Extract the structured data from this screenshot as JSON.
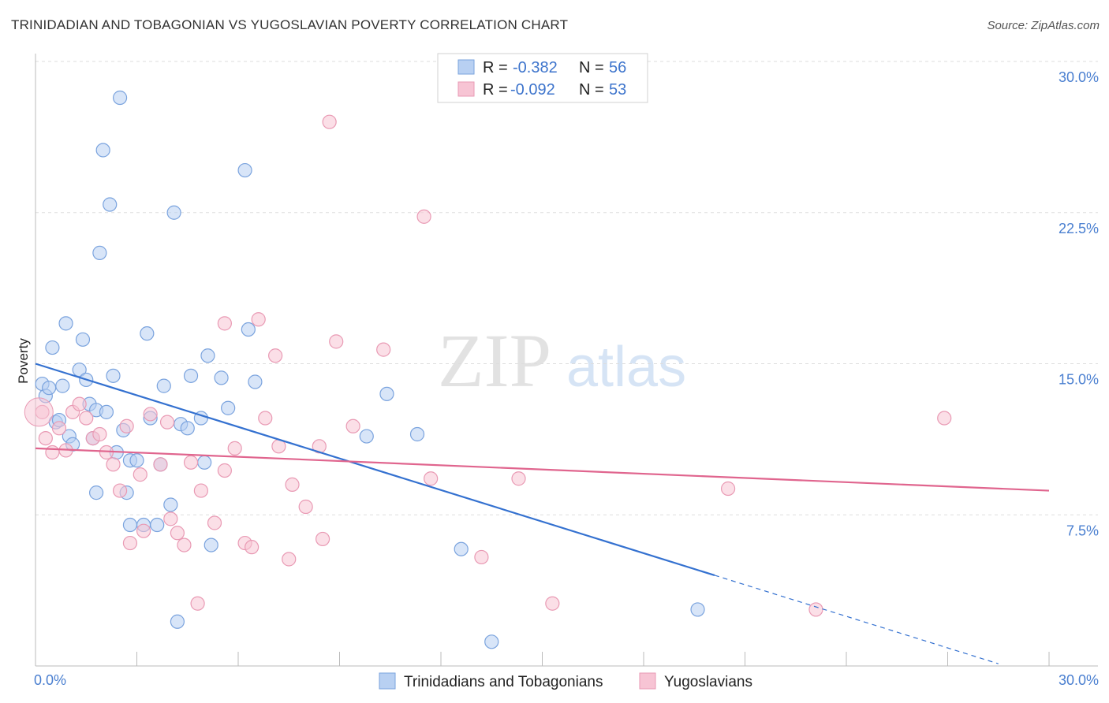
{
  "title": "TRINIDADIAN AND TOBAGONIAN VS YUGOSLAVIAN POVERTY CORRELATION CHART",
  "source": "Source: ZipAtlas.com",
  "watermark": {
    "zip": "ZIP",
    "atlas": "atlas"
  },
  "legend": {
    "items": [
      {
        "r_label": "R =",
        "r_value": "-0.382",
        "n_label": "N =",
        "n_value": "56"
      },
      {
        "r_label": "R =",
        "r_value": "-0.092",
        "n_label": "N =",
        "n_value": "53"
      }
    ]
  },
  "bottom_legend": [
    "Trinidadians and Tobagonians",
    "Yugoslavians"
  ],
  "colors": {
    "blue_fill": "#b8d0f2",
    "blue_stroke": "#7aa3de",
    "blue_line": "#3471d0",
    "pink_fill": "#f7c4d4",
    "pink_stroke": "#e99ab4",
    "pink_line": "#e0658e",
    "grid": "#dddddd",
    "tick_text": "#4a7fd0"
  },
  "chart_data": {
    "type": "scatter",
    "title": "TRINIDADIAN AND TOBAGONIAN VS YUGOSLAVIAN POVERTY CORRELATION CHART",
    "xlabel": "",
    "ylabel": "Poverty",
    "xlim": [
      0,
      30
    ],
    "ylim": [
      0,
      30
    ],
    "x_tick_labels": [
      "0.0%",
      "30.0%"
    ],
    "y_tick_values": [
      7.5,
      15.0,
      22.5,
      30.0
    ],
    "y_tick_labels": [
      "7.5%",
      "15.0%",
      "22.5%",
      "30.0%"
    ],
    "grid": "horizontal dashed",
    "legend_position": "top-center",
    "series": [
      {
        "name": "Trinidadians and Tobagonians",
        "r": -0.382,
        "n": 56,
        "trend": {
          "x0": 0,
          "y0": 15.0,
          "x1": 20.1,
          "y1": 4.5,
          "dashed_to_x": 28.5
        },
        "points": [
          [
            0.2,
            14.0
          ],
          [
            0.3,
            13.4
          ],
          [
            0.4,
            13.8
          ],
          [
            0.5,
            15.8
          ],
          [
            0.6,
            12.1
          ],
          [
            0.7,
            12.2
          ],
          [
            0.8,
            13.9
          ],
          [
            0.9,
            17.0
          ],
          [
            1.0,
            11.4
          ],
          [
            1.1,
            11.0
          ],
          [
            1.3,
            14.7
          ],
          [
            1.4,
            16.2
          ],
          [
            1.5,
            14.2
          ],
          [
            1.6,
            13.0
          ],
          [
            1.7,
            11.3
          ],
          [
            1.8,
            12.7
          ],
          [
            1.9,
            20.5
          ],
          [
            2.0,
            25.6
          ],
          [
            2.1,
            12.6
          ],
          [
            2.2,
            22.9
          ],
          [
            2.3,
            14.4
          ],
          [
            2.4,
            10.6
          ],
          [
            2.5,
            28.2
          ],
          [
            2.6,
            11.7
          ],
          [
            2.7,
            8.6
          ],
          [
            2.8,
            10.2
          ],
          [
            3.0,
            10.2
          ],
          [
            3.2,
            7.0
          ],
          [
            3.3,
            16.5
          ],
          [
            3.4,
            12.3
          ],
          [
            3.7,
            10.0
          ],
          [
            3.8,
            13.9
          ],
          [
            4.0,
            8.0
          ],
          [
            4.1,
            22.5
          ],
          [
            4.2,
            2.2
          ],
          [
            4.3,
            12.0
          ],
          [
            4.5,
            11.8
          ],
          [
            4.6,
            14.4
          ],
          [
            4.9,
            12.3
          ],
          [
            5.0,
            10.1
          ],
          [
            5.1,
            15.4
          ],
          [
            5.2,
            6.0
          ],
          [
            5.5,
            14.3
          ],
          [
            5.7,
            12.8
          ],
          [
            6.2,
            24.6
          ],
          [
            6.3,
            16.7
          ],
          [
            6.5,
            14.1
          ],
          [
            9.8,
            11.4
          ],
          [
            10.4,
            13.5
          ],
          [
            11.3,
            11.5
          ],
          [
            12.6,
            5.8
          ],
          [
            13.5,
            1.2
          ],
          [
            19.6,
            2.8
          ],
          [
            1.8,
            8.6
          ],
          [
            3.6,
            7.0
          ],
          [
            2.8,
            7.0
          ]
        ]
      },
      {
        "name": "Yugoslavians",
        "r": -0.092,
        "n": 53,
        "trend": {
          "x0": 0,
          "y0": 10.8,
          "x1": 30,
          "y1": 8.7
        },
        "points": [
          [
            0.2,
            12.6
          ],
          [
            0.3,
            11.3
          ],
          [
            0.5,
            10.6
          ],
          [
            0.7,
            11.8
          ],
          [
            0.9,
            10.7
          ],
          [
            1.1,
            12.6
          ],
          [
            1.3,
            13.0
          ],
          [
            1.5,
            12.3
          ],
          [
            1.7,
            11.3
          ],
          [
            1.9,
            11.5
          ],
          [
            2.1,
            10.6
          ],
          [
            2.3,
            10.0
          ],
          [
            2.5,
            8.7
          ],
          [
            2.7,
            11.9
          ],
          [
            2.8,
            6.1
          ],
          [
            3.1,
            9.5
          ],
          [
            3.2,
            6.7
          ],
          [
            3.4,
            12.5
          ],
          [
            3.7,
            10.0
          ],
          [
            3.9,
            12.1
          ],
          [
            4.0,
            7.3
          ],
          [
            4.2,
            6.6
          ],
          [
            4.4,
            6.0
          ],
          [
            4.6,
            10.1
          ],
          [
            4.8,
            3.1
          ],
          [
            4.9,
            8.7
          ],
          [
            5.3,
            7.1
          ],
          [
            5.6,
            9.7
          ],
          [
            5.6,
            17.0
          ],
          [
            5.9,
            10.8
          ],
          [
            6.2,
            6.1
          ],
          [
            6.4,
            5.9
          ],
          [
            6.6,
            17.2
          ],
          [
            6.8,
            12.3
          ],
          [
            7.1,
            15.4
          ],
          [
            7.2,
            10.9
          ],
          [
            7.5,
            5.3
          ],
          [
            7.6,
            9.0
          ],
          [
            8.0,
            7.9
          ],
          [
            8.4,
            10.9
          ],
          [
            8.5,
            6.3
          ],
          [
            8.7,
            27.0
          ],
          [
            8.9,
            16.1
          ],
          [
            9.4,
            11.9
          ],
          [
            10.3,
            15.7
          ],
          [
            11.5,
            22.3
          ],
          [
            11.7,
            9.3
          ],
          [
            13.2,
            5.4
          ],
          [
            14.3,
            9.3
          ],
          [
            15.3,
            3.1
          ],
          [
            20.5,
            8.8
          ],
          [
            23.1,
            2.8
          ],
          [
            26.9,
            12.3
          ]
        ]
      }
    ]
  }
}
